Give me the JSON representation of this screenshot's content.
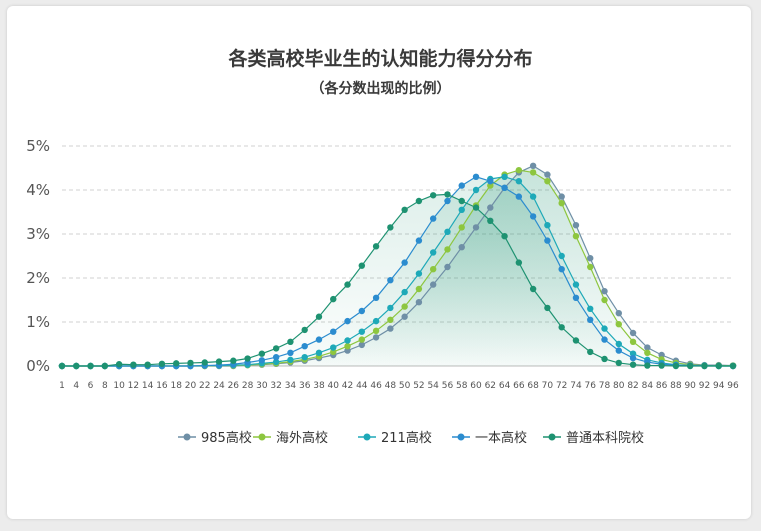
{
  "chart_data": {
    "type": "line",
    "title": "各类高校毕业生的认知能力得分分布",
    "subtitle": "（各分数出现的比例）",
    "xlabel": "",
    "ylabel": "",
    "ylim": [
      0,
      5
    ],
    "y_ticks": [
      "0%",
      "1%",
      "2%",
      "3%",
      "4%",
      "5%"
    ],
    "x_ticks": [
      "1",
      "4",
      "6",
      "8",
      "10",
      "12",
      "14",
      "16",
      "18",
      "20",
      "22",
      "24",
      "26",
      "28",
      "30",
      "32",
      "34",
      "36",
      "38",
      "40",
      "42",
      "44",
      "46",
      "48",
      "50",
      "52",
      "54",
      "56",
      "58",
      "60",
      "62",
      "64",
      "66",
      "68",
      "70",
      "72",
      "74",
      "76",
      "78",
      "80",
      "82",
      "84",
      "86",
      "88",
      "90",
      "92",
      "94",
      "96"
    ],
    "grid": true,
    "legend_position": "bottom",
    "x": [
      1,
      4,
      6,
      8,
      10,
      12,
      14,
      16,
      18,
      20,
      22,
      24,
      26,
      28,
      30,
      32,
      34,
      36,
      38,
      40,
      42,
      44,
      46,
      48,
      50,
      52,
      54,
      56,
      58,
      60,
      62,
      64,
      66,
      68,
      70,
      72,
      74,
      76,
      78,
      80,
      82,
      84,
      86,
      88,
      90,
      92,
      94,
      96
    ],
    "series": [
      {
        "name": "985高校",
        "color": "#6f8fa6",
        "values": [
          0,
          0,
          0,
          0,
          0,
          0,
          0,
          0,
          0,
          0,
          0,
          0,
          0,
          0.02,
          0.03,
          0.05,
          0.08,
          0.12,
          0.18,
          0.25,
          0.35,
          0.48,
          0.65,
          0.85,
          1.12,
          1.45,
          1.85,
          2.25,
          2.7,
          3.15,
          3.6,
          4.05,
          4.4,
          4.55,
          4.35,
          3.85,
          3.2,
          2.45,
          1.7,
          1.2,
          0.75,
          0.42,
          0.25,
          0.12,
          0.05,
          0.02,
          0.02,
          0.01
        ]
      },
      {
        "name": "海外高校",
        "color": "#8dc63f",
        "values": [
          0,
          0,
          0,
          0,
          0,
          0,
          0,
          0,
          0,
          0,
          0,
          0.01,
          0.01,
          0.02,
          0.04,
          0.06,
          0.1,
          0.15,
          0.22,
          0.32,
          0.45,
          0.6,
          0.8,
          1.05,
          1.35,
          1.75,
          2.2,
          2.65,
          3.15,
          3.65,
          4.1,
          4.35,
          4.45,
          4.4,
          4.2,
          3.7,
          2.95,
          2.25,
          1.5,
          0.95,
          0.55,
          0.3,
          0.15,
          0.07,
          0.03,
          0.01,
          0.01,
          0.01
        ]
      },
      {
        "name": "211高校",
        "color": "#1ea9b8",
        "values": [
          0,
          0,
          0,
          0,
          0,
          0,
          0,
          0,
          0,
          0,
          0.01,
          0.01,
          0.02,
          0.03,
          0.06,
          0.09,
          0.14,
          0.2,
          0.3,
          0.42,
          0.58,
          0.78,
          1.02,
          1.32,
          1.68,
          2.1,
          2.58,
          3.05,
          3.55,
          4.0,
          4.25,
          4.3,
          4.2,
          3.85,
          3.2,
          2.5,
          1.85,
          1.3,
          0.85,
          0.5,
          0.28,
          0.14,
          0.07,
          0.03,
          0.01,
          0.01,
          0,
          0
        ]
      },
      {
        "name": "一本高校",
        "color": "#2b8ccf",
        "values": [
          0,
          0,
          0,
          0,
          0,
          0,
          0,
          0,
          0,
          0,
          0.01,
          0.02,
          0.04,
          0.08,
          0.13,
          0.2,
          0.3,
          0.45,
          0.6,
          0.78,
          1.02,
          1.25,
          1.55,
          1.95,
          2.35,
          2.85,
          3.35,
          3.75,
          4.1,
          4.3,
          4.2,
          4.05,
          3.85,
          3.4,
          2.85,
          2.2,
          1.55,
          1.05,
          0.6,
          0.35,
          0.18,
          0.09,
          0.04,
          0.02,
          0.01,
          0,
          0,
          0
        ]
      },
      {
        "name": "普通本科院校",
        "color": "#1e9271",
        "values": [
          0,
          0,
          0,
          0,
          0.04,
          0.03,
          0.03,
          0.05,
          0.06,
          0.07,
          0.08,
          0.1,
          0.12,
          0.17,
          0.28,
          0.4,
          0.55,
          0.82,
          1.12,
          1.52,
          1.85,
          2.28,
          2.72,
          3.15,
          3.55,
          3.75,
          3.88,
          3.9,
          3.75,
          3.6,
          3.3,
          2.95,
          2.35,
          1.75,
          1.32,
          0.88,
          0.58,
          0.32,
          0.16,
          0.07,
          0.03,
          0.01,
          0.01,
          0,
          0,
          0,
          0,
          0
        ]
      }
    ]
  }
}
